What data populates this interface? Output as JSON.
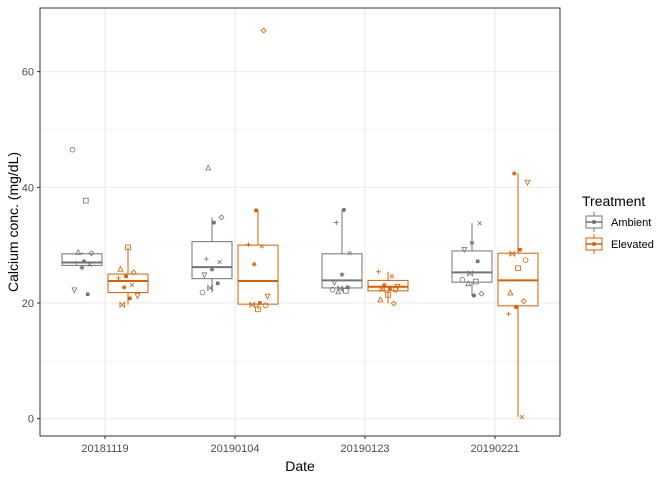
{
  "chart_data": {
    "type": "boxplot",
    "xlabel": "Date",
    "ylabel": "Calcium conc. (mg/dL)",
    "ylim": [
      -3,
      71
    ],
    "yticks": [
      0,
      20,
      40,
      60
    ],
    "categories": [
      "20181119",
      "20190104",
      "20190123",
      "20190221"
    ],
    "grid": true,
    "legend": {
      "title": "Treatment",
      "position": "right",
      "entries": [
        "Ambient",
        "Elevated"
      ]
    },
    "series": [
      {
        "name": "Ambient",
        "color": "#737373",
        "boxes": [
          {
            "category": "20181119",
            "q1": 26.5,
            "median": 27.0,
            "q3": 28.5,
            "whisker_low": 26.0,
            "whisker_high": 28.8,
            "points": [
              46.5,
              37.7,
              28.8,
              28.6,
              27.2,
              26.9,
              26.6,
              26.1,
              22.2,
              21.5
            ]
          },
          {
            "category": "20190104",
            "q1": 24.2,
            "median": 26.2,
            "q3": 30.6,
            "whisker_low": 21.8,
            "whisker_high": 34.8,
            "points": [
              43.4,
              34.8,
              33.9,
              27.6,
              27.1,
              25.8,
              24.8,
              23.4,
              22.6,
              21.8
            ]
          },
          {
            "category": "20190123",
            "q1": 22.6,
            "median": 23.9,
            "q3": 28.5,
            "whisker_low": 22.0,
            "whisker_high": 36.1,
            "points": [
              36.1,
              33.9,
              28.6,
              24.9,
              23.5,
              22.7,
              22.5,
              22.3,
              22.1,
              22.0
            ]
          },
          {
            "category": "20190221",
            "q1": 23.6,
            "median": 25.3,
            "q3": 29.0,
            "whisker_low": 21.3,
            "whisker_high": 33.8,
            "points": [
              33.8,
              30.4,
              29.2,
              27.2,
              25.1,
              24.0,
              23.7,
              23.4,
              21.6,
              21.3
            ]
          }
        ]
      },
      {
        "name": "Elevated",
        "color": "#d95f02",
        "boxes": [
          {
            "category": "20181119",
            "q1": 21.8,
            "median": 23.8,
            "q3": 25.0,
            "whisker_low": 19.7,
            "whisker_high": 29.6,
            "points": [
              29.6,
              25.9,
              25.3,
              24.6,
              24.3,
              23.1,
              22.7,
              21.2,
              20.8,
              19.7
            ]
          },
          {
            "category": "20190104",
            "q1": 19.8,
            "median": 23.8,
            "q3": 30.0,
            "whisker_low": 18.9,
            "whisker_high": 36.0,
            "points": [
              67.1,
              36.0,
              30.1,
              29.8,
              26.7,
              21.1,
              20.0,
              19.7,
              19.6,
              18.9
            ]
          },
          {
            "category": "20190123",
            "q1": 22.1,
            "median": 22.8,
            "q3": 23.9,
            "whisker_low": 19.9,
            "whisker_high": 25.4,
            "points": [
              25.4,
              24.6,
              23.1,
              22.8,
              22.5,
              22.4,
              22.3,
              21.4,
              20.6,
              19.9
            ]
          },
          {
            "category": "20190221",
            "q1": 19.5,
            "median": 23.9,
            "q3": 28.6,
            "whisker_low": 0.3,
            "whisker_high": 42.4,
            "points": [
              42.4,
              40.8,
              29.2,
              28.5,
              27.4,
              26.0,
              21.8,
              20.3,
              19.3,
              18.1,
              0.3
            ]
          }
        ]
      }
    ]
  }
}
